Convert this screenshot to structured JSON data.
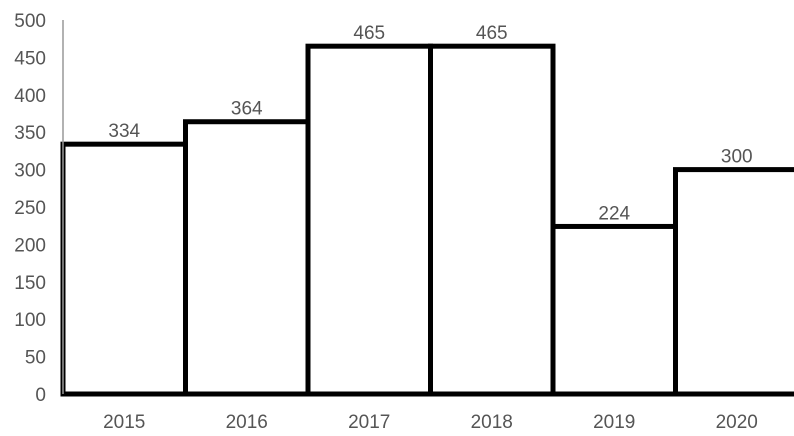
{
  "chart_data": {
    "type": "bar",
    "title": "",
    "xlabel": "",
    "ylabel": "",
    "categories": [
      "2015",
      "2016",
      "2017",
      "2018",
      "2019",
      "2020"
    ],
    "values": [
      334,
      364,
      465,
      465,
      224,
      300
    ],
    "data_labels": [
      "334",
      "364",
      "465",
      "465",
      "224",
      "300"
    ],
    "ylim": [
      0,
      500
    ],
    "y_ticks": [
      "0",
      "50",
      "100",
      "150",
      "200",
      "250",
      "300",
      "350",
      "400",
      "450",
      "500"
    ],
    "grid": false,
    "legend": "none",
    "colors": {
      "bar_fill": "#ffffff",
      "bar_stroke": "#000000",
      "text": "#555555"
    }
  }
}
